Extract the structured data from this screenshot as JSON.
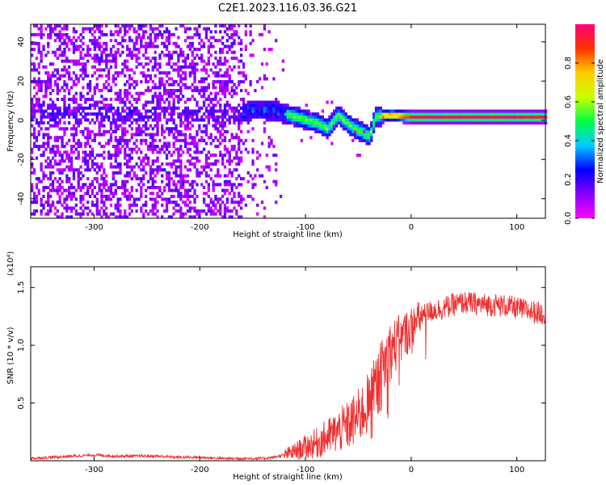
{
  "title": "C2E1.2023.116.03.36.G21",
  "colors": {
    "snr_line": "#ee3030",
    "axis": "#000000",
    "colorbar": [
      "#ff00ff",
      "#8800ff",
      "#0000ff",
      "#00ccff",
      "#00ff44",
      "#ccff00",
      "#ffcc00",
      "#ff3300",
      "#ff0077"
    ]
  },
  "chart_data": [
    {
      "type": "heatmap",
      "name": "spectrogram",
      "xlabel": "Height of straight line (km)",
      "ylabel": "Frequency (Hz)",
      "xlim": [
        -360,
        127
      ],
      "ylim": [
        -50,
        49
      ],
      "xticks": [
        -300,
        -200,
        -100,
        0,
        100
      ],
      "yticks": [
        -40,
        -20,
        0,
        20,
        40
      ],
      "colorbar": {
        "label": "Normalized spectral amplitude",
        "range": [
          0,
          1
        ],
        "ticks": [
          0.0,
          0.2,
          0.4,
          0.6,
          0.8
        ]
      },
      "ridge": [
        {
          "x": -355,
          "y": 4
        },
        {
          "x": -330,
          "y": 3
        },
        {
          "x": -300,
          "y": 3
        },
        {
          "x": -270,
          "y": 2
        },
        {
          "x": -240,
          "y": 2
        },
        {
          "x": -200,
          "y": 2
        },
        {
          "x": -160,
          "y": 3
        },
        {
          "x": -150,
          "y": 5
        },
        {
          "x": -130,
          "y": 4
        },
        {
          "x": -110,
          "y": 1
        },
        {
          "x": -90,
          "y": -2
        },
        {
          "x": -80,
          "y": -5
        },
        {
          "x": -70,
          "y": 2
        },
        {
          "x": -60,
          "y": -3
        },
        {
          "x": -50,
          "y": -6
        },
        {
          "x": -40,
          "y": -9
        },
        {
          "x": -35,
          "y": 1
        },
        {
          "x": -20,
          "y": 2
        },
        {
          "x": 0,
          "y": 1
        },
        {
          "x": 50,
          "y": 1
        },
        {
          "x": 100,
          "y": 1
        },
        {
          "x": 127,
          "y": 1
        }
      ]
    },
    {
      "type": "line",
      "name": "snr",
      "xlabel": "Height of straight line (km)",
      "ylabel": "SNR (10 * v/v)",
      "yscale_label": "(x10⁴)",
      "xlim": [
        -360,
        127
      ],
      "ylim": [
        0,
        1.68
      ],
      "xticks": [
        -300,
        -200,
        -100,
        0,
        100
      ],
      "yticks": [
        0.5,
        1.0,
        1.5
      ],
      "ytick_labels": [
        "0.5",
        "1.0",
        "1.5"
      ],
      "x": [
        -360,
        -340,
        -320,
        -300,
        -280,
        -260,
        -240,
        -220,
        -200,
        -180,
        -160,
        -140,
        -130,
        -120,
        -110,
        -100,
        -90,
        -80,
        -70,
        -60,
        -50,
        -40,
        -30,
        -25,
        -20,
        -15,
        -10,
        -5,
        0,
        10,
        20,
        30,
        40,
        50,
        60,
        70,
        80,
        90,
        100,
        110,
        120,
        127
      ],
      "y": [
        0.02,
        0.03,
        0.04,
        0.05,
        0.04,
        0.04,
        0.04,
        0.03,
        0.03,
        0.02,
        0.02,
        0.02,
        0.03,
        0.05,
        0.08,
        0.12,
        0.15,
        0.2,
        0.25,
        0.3,
        0.38,
        0.5,
        0.7,
        0.85,
        0.95,
        1.0,
        1.05,
        1.1,
        1.15,
        1.25,
        1.3,
        1.32,
        1.35,
        1.37,
        1.36,
        1.35,
        1.35,
        1.34,
        1.32,
        1.3,
        1.28,
        1.27
      ]
    }
  ]
}
